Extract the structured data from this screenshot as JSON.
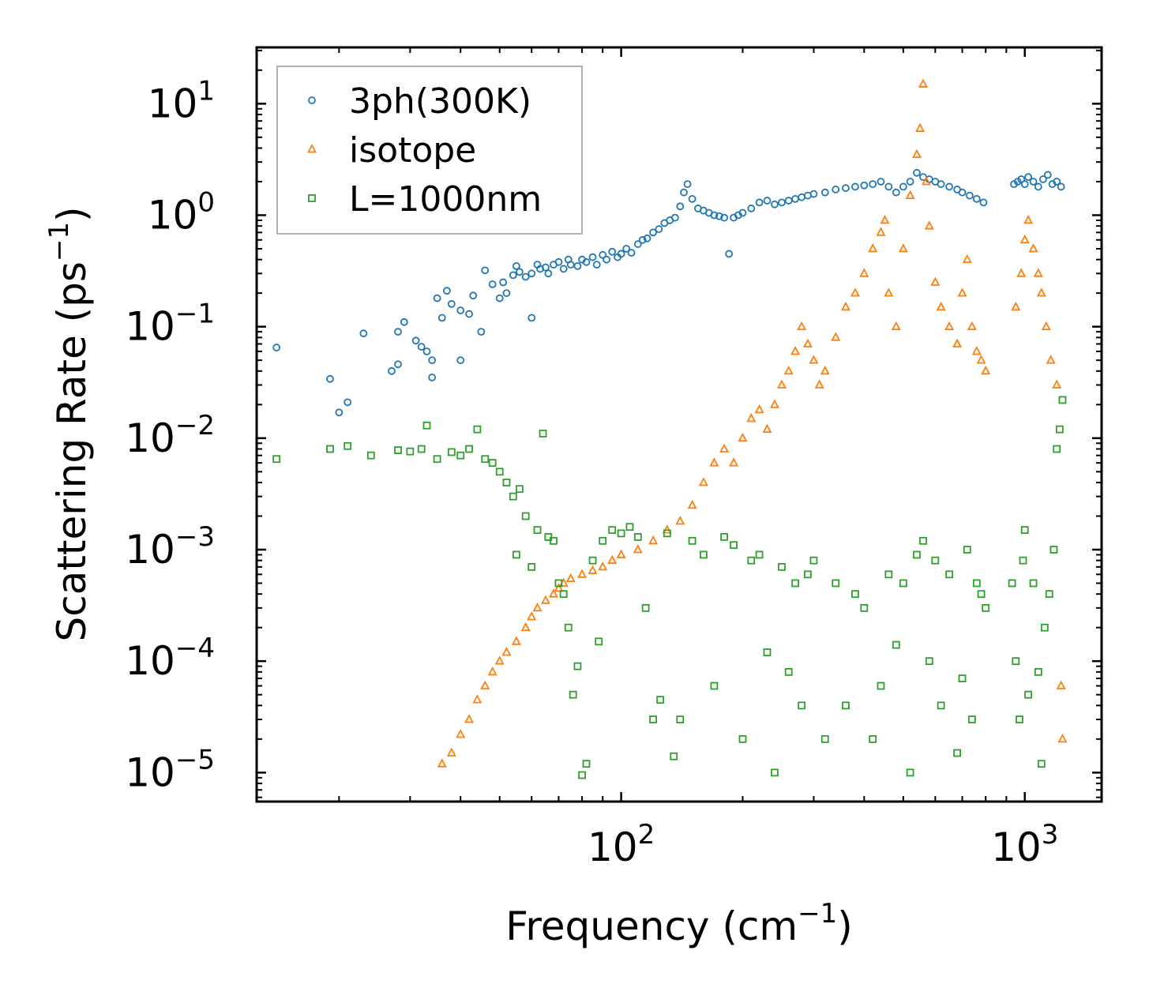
{
  "chart_data": {
    "type": "scatter",
    "title": "",
    "xlabel": "Frequency (cm",
    "xlabel_sup": "−1",
    "xlabel_end": ")",
    "ylabel": "Scattering Rate (ps",
    "ylabel_sup": "−1",
    "ylabel_end": ")",
    "xscale": "log",
    "yscale": "log",
    "xlim": [
      12.5,
      1550
    ],
    "ylim": [
      5.5e-06,
      32
    ],
    "x_ticks": [
      {
        "value": 100,
        "base": "10",
        "exp": "2"
      },
      {
        "value": 1000,
        "base": "10",
        "exp": "3"
      }
    ],
    "y_ticks": [
      {
        "value": 1e-05,
        "base": "10",
        "exp": "−5"
      },
      {
        "value": 0.0001,
        "base": "10",
        "exp": "−4"
      },
      {
        "value": 0.001,
        "base": "10",
        "exp": "−3"
      },
      {
        "value": 0.01,
        "base": "10",
        "exp": "−2"
      },
      {
        "value": 0.1,
        "base": "10",
        "exp": "−1"
      },
      {
        "value": 1,
        "base": "10",
        "exp": "0"
      },
      {
        "value": 10,
        "base": "10",
        "exp": "1"
      }
    ],
    "legend_position": "top-left",
    "series": [
      {
        "name": "3ph(300K)",
        "color": "#1f77b4",
        "marker": "circle",
        "points": [
          [
            14,
            0.065
          ],
          [
            19,
            0.034
          ],
          [
            20,
            0.017
          ],
          [
            21,
            0.021
          ],
          [
            23,
            0.087
          ],
          [
            27,
            0.04
          ],
          [
            28,
            0.046
          ],
          [
            28,
            0.09
          ],
          [
            29,
            0.11
          ],
          [
            31,
            0.075
          ],
          [
            32,
            0.066
          ],
          [
            33,
            0.06
          ],
          [
            34,
            0.05
          ],
          [
            34,
            0.035
          ],
          [
            35,
            0.18
          ],
          [
            36,
            0.12
          ],
          [
            37,
            0.21
          ],
          [
            38,
            0.16
          ],
          [
            40,
            0.05
          ],
          [
            40,
            0.14
          ],
          [
            42,
            0.13
          ],
          [
            43,
            0.19
          ],
          [
            45,
            0.09
          ],
          [
            46,
            0.32
          ],
          [
            48,
            0.24
          ],
          [
            50,
            0.18
          ],
          [
            51,
            0.25
          ],
          [
            52,
            0.2
          ],
          [
            54,
            0.29
          ],
          [
            55,
            0.35
          ],
          [
            56,
            0.31
          ],
          [
            58,
            0.28
          ],
          [
            60,
            0.3
          ],
          [
            60,
            0.12
          ],
          [
            62,
            0.36
          ],
          [
            63,
            0.33
          ],
          [
            65,
            0.34
          ],
          [
            66,
            0.3
          ],
          [
            68,
            0.36
          ],
          [
            70,
            0.38
          ],
          [
            72,
            0.33
          ],
          [
            74,
            0.4
          ],
          [
            75,
            0.36
          ],
          [
            78,
            0.35
          ],
          [
            80,
            0.4
          ],
          [
            82,
            0.38
          ],
          [
            85,
            0.42
          ],
          [
            87,
            0.36
          ],
          [
            90,
            0.44
          ],
          [
            92,
            0.4
          ],
          [
            95,
            0.47
          ],
          [
            98,
            0.42
          ],
          [
            100,
            0.45
          ],
          [
            103,
            0.5
          ],
          [
            106,
            0.46
          ],
          [
            110,
            0.55
          ],
          [
            113,
            0.6
          ],
          [
            116,
            0.62
          ],
          [
            120,
            0.7
          ],
          [
            124,
            0.75
          ],
          [
            128,
            0.85
          ],
          [
            132,
            0.9
          ],
          [
            136,
            0.95
          ],
          [
            140,
            1.2
          ],
          [
            143,
            1.6
          ],
          [
            146,
            1.9
          ],
          [
            150,
            1.4
          ],
          [
            155,
            1.15
          ],
          [
            160,
            1.1
          ],
          [
            165,
            1.05
          ],
          [
            170,
            1.0
          ],
          [
            175,
            0.98
          ],
          [
            180,
            0.95
          ],
          [
            185,
            0.45
          ],
          [
            190,
            0.95
          ],
          [
            195,
            1.0
          ],
          [
            200,
            1.05
          ],
          [
            210,
            1.15
          ],
          [
            220,
            1.3
          ],
          [
            230,
            1.35
          ],
          [
            240,
            1.25
          ],
          [
            250,
            1.3
          ],
          [
            260,
            1.35
          ],
          [
            270,
            1.4
          ],
          [
            280,
            1.45
          ],
          [
            290,
            1.5
          ],
          [
            300,
            1.55
          ],
          [
            320,
            1.6
          ],
          [
            340,
            1.7
          ],
          [
            360,
            1.75
          ],
          [
            380,
            1.8
          ],
          [
            400,
            1.85
          ],
          [
            420,
            1.9
          ],
          [
            440,
            2.0
          ],
          [
            460,
            1.8
          ],
          [
            480,
            1.6
          ],
          [
            500,
            1.8
          ],
          [
            520,
            2.0
          ],
          [
            540,
            2.4
          ],
          [
            560,
            2.2
          ],
          [
            580,
            2.1
          ],
          [
            600,
            2.0
          ],
          [
            620,
            1.9
          ],
          [
            650,
            1.8
          ],
          [
            680,
            1.7
          ],
          [
            700,
            1.6
          ],
          [
            730,
            1.5
          ],
          [
            760,
            1.4
          ],
          [
            790,
            1.3
          ],
          [
            940,
            1.9
          ],
          [
            960,
            2.0
          ],
          [
            980,
            2.1
          ],
          [
            1000,
            1.9
          ],
          [
            1020,
            2.2
          ],
          [
            1050,
            2.0
          ],
          [
            1080,
            1.8
          ],
          [
            1110,
            2.1
          ],
          [
            1140,
            2.3
          ],
          [
            1170,
            1.9
          ],
          [
            1200,
            2.0
          ],
          [
            1230,
            1.8
          ]
        ]
      },
      {
        "name": "isotope",
        "color": "#ff7f0e",
        "marker": "triangle",
        "points": [
          [
            36,
            1.2e-05
          ],
          [
            38,
            1.5e-05
          ],
          [
            40,
            2.2e-05
          ],
          [
            42,
            3e-05
          ],
          [
            44,
            4.5e-05
          ],
          [
            46,
            6e-05
          ],
          [
            48,
            8e-05
          ],
          [
            50,
            0.0001
          ],
          [
            52,
            0.00012
          ],
          [
            55,
            0.00015
          ],
          [
            58,
            0.0002
          ],
          [
            60,
            0.00025
          ],
          [
            62,
            0.0003
          ],
          [
            65,
            0.00035
          ],
          [
            68,
            0.0004
          ],
          [
            70,
            0.00045
          ],
          [
            72,
            0.0005
          ],
          [
            75,
            0.00055
          ],
          [
            80,
            0.0006
          ],
          [
            85,
            0.00065
          ],
          [
            90,
            0.0007
          ],
          [
            95,
            0.0008
          ],
          [
            100,
            0.0009
          ],
          [
            110,
            0.001
          ],
          [
            120,
            0.0012
          ],
          [
            130,
            0.0015
          ],
          [
            140,
            0.0018
          ],
          [
            150,
            0.0025
          ],
          [
            160,
            0.004
          ],
          [
            170,
            0.006
          ],
          [
            180,
            0.008
          ],
          [
            190,
            0.006
          ],
          [
            200,
            0.01
          ],
          [
            210,
            0.015
          ],
          [
            220,
            0.018
          ],
          [
            230,
            0.012
          ],
          [
            240,
            0.02
          ],
          [
            250,
            0.03
          ],
          [
            260,
            0.04
          ],
          [
            270,
            0.06
          ],
          [
            280,
            0.1
          ],
          [
            290,
            0.07
          ],
          [
            300,
            0.05
          ],
          [
            310,
            0.03
          ],
          [
            320,
            0.04
          ],
          [
            340,
            0.08
          ],
          [
            360,
            0.15
          ],
          [
            380,
            0.2
          ],
          [
            400,
            0.3
          ],
          [
            420,
            0.5
          ],
          [
            440,
            0.7
          ],
          [
            450,
            0.9
          ],
          [
            460,
            0.2
          ],
          [
            480,
            0.1
          ],
          [
            500,
            0.5
          ],
          [
            520,
            1.5
          ],
          [
            540,
            3.5
          ],
          [
            550,
            6.0
          ],
          [
            560,
            15.0
          ],
          [
            570,
            2.0
          ],
          [
            580,
            0.8
          ],
          [
            600,
            0.25
          ],
          [
            620,
            0.15
          ],
          [
            650,
            0.1
          ],
          [
            680,
            0.07
          ],
          [
            700,
            0.2
          ],
          [
            720,
            0.4
          ],
          [
            740,
            0.1
          ],
          [
            760,
            0.06
          ],
          [
            780,
            0.05
          ],
          [
            800,
            0.04
          ],
          [
            950,
            0.15
          ],
          [
            980,
            0.3
          ],
          [
            1000,
            0.6
          ],
          [
            1020,
            0.9
          ],
          [
            1050,
            0.5
          ],
          [
            1080,
            0.3
          ],
          [
            1100,
            0.2
          ],
          [
            1130,
            0.1
          ],
          [
            1160,
            0.05
          ],
          [
            1200,
            0.03
          ],
          [
            1230,
            6e-05
          ],
          [
            1240,
            2e-05
          ]
        ]
      },
      {
        "name": "L=1000nm",
        "color": "#2ca02c",
        "marker": "square",
        "points": [
          [
            14,
            0.0065
          ],
          [
            19,
            0.008
          ],
          [
            21,
            0.0085
          ],
          [
            24,
            0.007
          ],
          [
            28,
            0.0078
          ],
          [
            30,
            0.0076
          ],
          [
            32,
            0.008
          ],
          [
            33,
            0.013
          ],
          [
            35,
            0.0065
          ],
          [
            38,
            0.0075
          ],
          [
            40,
            0.007
          ],
          [
            42,
            0.008
          ],
          [
            44,
            0.012
          ],
          [
            46,
            0.0065
          ],
          [
            48,
            0.006
          ],
          [
            50,
            0.005
          ],
          [
            52,
            0.004
          ],
          [
            54,
            0.003
          ],
          [
            55,
            0.0009
          ],
          [
            56,
            0.0035
          ],
          [
            58,
            0.002
          ],
          [
            60,
            0.0007
          ],
          [
            62,
            0.0015
          ],
          [
            64,
            0.011
          ],
          [
            66,
            0.0013
          ],
          [
            68,
            0.0012
          ],
          [
            70,
            0.0005
          ],
          [
            72,
            0.0004
          ],
          [
            74,
            0.0002
          ],
          [
            76,
            5e-05
          ],
          [
            78,
            9e-05
          ],
          [
            80,
            9.5e-06
          ],
          [
            82,
            1.2e-05
          ],
          [
            85,
            0.0008
          ],
          [
            88,
            0.00015
          ],
          [
            90,
            0.0012
          ],
          [
            95,
            0.0015
          ],
          [
            100,
            0.0014
          ],
          [
            105,
            0.0016
          ],
          [
            110,
            0.0013
          ],
          [
            115,
            0.0003
          ],
          [
            120,
            3e-05
          ],
          [
            125,
            4.5e-05
          ],
          [
            130,
            0.0014
          ],
          [
            135,
            1.4e-05
          ],
          [
            140,
            3e-05
          ],
          [
            150,
            0.0012
          ],
          [
            160,
            0.0009
          ],
          [
            170,
            6e-05
          ],
          [
            180,
            0.0013
          ],
          [
            190,
            0.0011
          ],
          [
            200,
            2e-05
          ],
          [
            210,
            0.0008
          ],
          [
            220,
            0.0009
          ],
          [
            230,
            0.00012
          ],
          [
            240,
            1e-05
          ],
          [
            250,
            0.0007
          ],
          [
            260,
            8e-05
          ],
          [
            270,
            0.0005
          ],
          [
            280,
            4e-05
          ],
          [
            290,
            0.0006
          ],
          [
            300,
            0.0008
          ],
          [
            320,
            2e-05
          ],
          [
            340,
            0.0005
          ],
          [
            360,
            4e-05
          ],
          [
            380,
            0.0004
          ],
          [
            400,
            0.0003
          ],
          [
            420,
            2e-05
          ],
          [
            440,
            6e-05
          ],
          [
            460,
            0.0006
          ],
          [
            480,
            0.00014
          ],
          [
            500,
            0.0005
          ],
          [
            520,
            1e-05
          ],
          [
            540,
            0.0009
          ],
          [
            560,
            0.0012
          ],
          [
            580,
            0.0001
          ],
          [
            600,
            0.0008
          ],
          [
            620,
            4e-05
          ],
          [
            650,
            0.0006
          ],
          [
            680,
            1.5e-05
          ],
          [
            700,
            7e-05
          ],
          [
            720,
            0.001
          ],
          [
            740,
            3e-05
          ],
          [
            760,
            0.0005
          ],
          [
            780,
            0.0004
          ],
          [
            800,
            0.0003
          ],
          [
            930,
            0.0005
          ],
          [
            950,
            0.0001
          ],
          [
            970,
            3e-05
          ],
          [
            990,
            0.0008
          ],
          [
            1000,
            0.0015
          ],
          [
            1020,
            5e-05
          ],
          [
            1050,
            0.0005
          ],
          [
            1080,
            8e-05
          ],
          [
            1100,
            1.2e-05
          ],
          [
            1120,
            0.0002
          ],
          [
            1150,
            0.0004
          ],
          [
            1180,
            0.001
          ],
          [
            1200,
            0.008
          ],
          [
            1220,
            0.012
          ],
          [
            1240,
            0.022
          ]
        ]
      }
    ]
  }
}
